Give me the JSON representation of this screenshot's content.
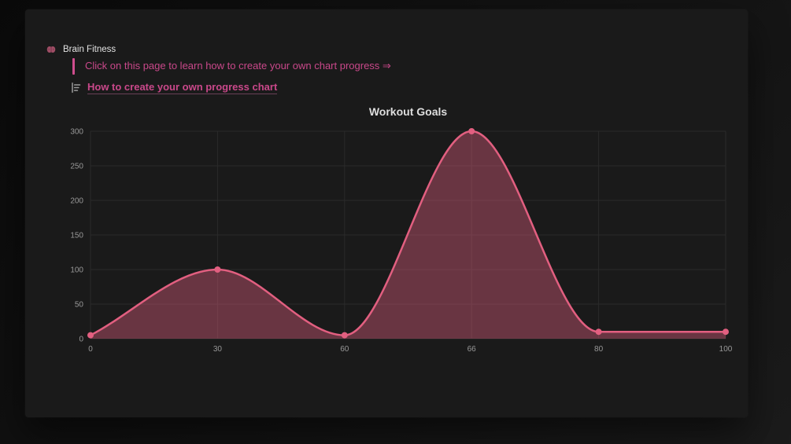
{
  "header": {
    "breadcrumb": "Brain Fitness",
    "icon": "brain-icon"
  },
  "callout": {
    "text": "Click on this page to learn how to create your own chart progress ⇒"
  },
  "link": {
    "label": "How to create your own progress chart",
    "icon": "page-icon"
  },
  "colors": {
    "accent_pink": "#c9488a",
    "chart_line": "#e25f80",
    "chart_fill": "rgba(226,95,128,0.40)",
    "grid": "#2a2a2a",
    "tick_label": "#989898",
    "chart_title": "#dedede",
    "page_background": "#1a1a1a",
    "desktop_background": "#101010"
  },
  "chart_data": {
    "type": "area",
    "title": "Workout Goals",
    "categories": [
      "0",
      "30",
      "60",
      "66",
      "80",
      "100"
    ],
    "values": [
      5,
      100,
      5,
      300,
      10,
      10
    ],
    "xlabel": "",
    "ylabel": "",
    "ylim": [
      0,
      300
    ],
    "ytick_step": 50,
    "grid": true,
    "legend": false,
    "line_smoothing": "monotone",
    "point_radius": 4
  }
}
